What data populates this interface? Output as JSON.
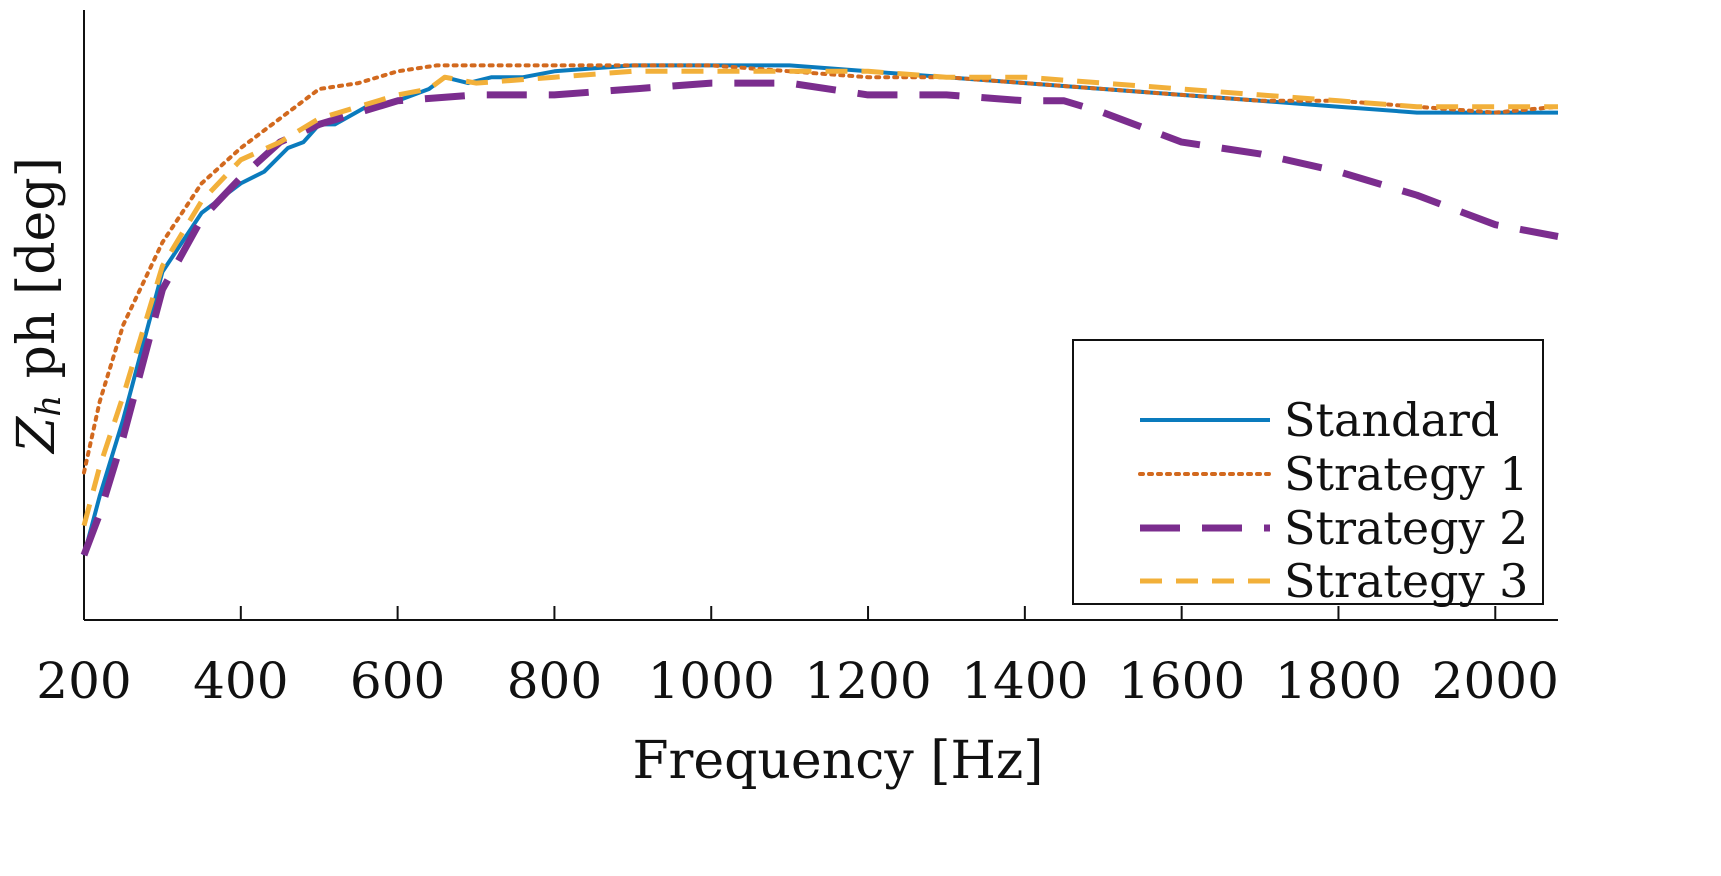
{
  "chart_data": {
    "type": "line",
    "title": "",
    "xlabel": "Frequency [Hz]",
    "ylabel_main": "Z",
    "ylabel_sub": "h",
    "ylabel_rest": " ph [deg]",
    "xlim": [
      200,
      2080
    ],
    "ylim": [
      0,
      100
    ],
    "x_ticks": [
      200,
      400,
      600,
      800,
      1000,
      1200,
      1400,
      1600,
      1800,
      2000
    ],
    "y_ticks_labeled": false,
    "grid": false,
    "legend_position": "bottom-right",
    "series": [
      {
        "name": "Standard",
        "color": "#0a7bbd",
        "dash": "solid",
        "points": [
          [
            200,
            11
          ],
          [
            220,
            21
          ],
          [
            250,
            34
          ],
          [
            300,
            59
          ],
          [
            350,
            69
          ],
          [
            400,
            74
          ],
          [
            430,
            76
          ],
          [
            460,
            80
          ],
          [
            480,
            81
          ],
          [
            500,
            84
          ],
          [
            520,
            84
          ],
          [
            560,
            87
          ],
          [
            600,
            88
          ],
          [
            640,
            90
          ],
          [
            660,
            92
          ],
          [
            690,
            91
          ],
          [
            720,
            92
          ],
          [
            760,
            92
          ],
          [
            800,
            93
          ],
          [
            900,
            94
          ],
          [
            1000,
            94
          ],
          [
            1100,
            94
          ],
          [
            1200,
            93
          ],
          [
            1300,
            92
          ],
          [
            1400,
            91
          ],
          [
            1500,
            90
          ],
          [
            1600,
            89
          ],
          [
            1700,
            88
          ],
          [
            1800,
            87
          ],
          [
            1900,
            86
          ],
          [
            2000,
            86
          ],
          [
            2080,
            86
          ]
        ]
      },
      {
        "name": "Strategy 1",
        "color": "#d2691e",
        "dash": "dotted",
        "points": [
          [
            200,
            25
          ],
          [
            220,
            37
          ],
          [
            250,
            50
          ],
          [
            300,
            64
          ],
          [
            350,
            74
          ],
          [
            400,
            80
          ],
          [
            450,
            85
          ],
          [
            500,
            90
          ],
          [
            550,
            91
          ],
          [
            600,
            93
          ],
          [
            650,
            94
          ],
          [
            700,
            94
          ],
          [
            800,
            94
          ],
          [
            900,
            94
          ],
          [
            1000,
            94
          ],
          [
            1100,
            93
          ],
          [
            1200,
            92
          ],
          [
            1300,
            92
          ],
          [
            1400,
            91
          ],
          [
            1500,
            90
          ],
          [
            1600,
            89
          ],
          [
            1700,
            88
          ],
          [
            1800,
            88
          ],
          [
            1900,
            87
          ],
          [
            2000,
            86
          ],
          [
            2080,
            87
          ]
        ]
      },
      {
        "name": "Strategy 2",
        "color": "#7b2d8e",
        "dash": "long-dash",
        "points": [
          [
            200,
            11
          ],
          [
            220,
            18
          ],
          [
            250,
            31
          ],
          [
            300,
            56
          ],
          [
            350,
            68
          ],
          [
            400,
            75
          ],
          [
            450,
            81
          ],
          [
            500,
            84
          ],
          [
            550,
            86
          ],
          [
            600,
            88
          ],
          [
            700,
            89
          ],
          [
            800,
            89
          ],
          [
            900,
            90
          ],
          [
            1000,
            91
          ],
          [
            1100,
            91
          ],
          [
            1200,
            89
          ],
          [
            1300,
            89
          ],
          [
            1400,
            88
          ],
          [
            1450,
            88
          ],
          [
            1500,
            86
          ],
          [
            1600,
            81
          ],
          [
            1700,
            79
          ],
          [
            1800,
            76
          ],
          [
            1900,
            72
          ],
          [
            2000,
            67
          ],
          [
            2080,
            65
          ]
        ]
      },
      {
        "name": "Strategy 3",
        "color": "#f2b03a",
        "dash": "dashed",
        "points": [
          [
            200,
            16
          ],
          [
            220,
            26
          ],
          [
            250,
            38
          ],
          [
            300,
            60
          ],
          [
            350,
            71
          ],
          [
            400,
            78
          ],
          [
            450,
            81
          ],
          [
            500,
            85
          ],
          [
            550,
            87
          ],
          [
            600,
            89
          ],
          [
            640,
            90
          ],
          [
            660,
            92
          ],
          [
            700,
            91
          ],
          [
            800,
            92
          ],
          [
            900,
            93
          ],
          [
            1000,
            93
          ],
          [
            1100,
            93
          ],
          [
            1200,
            93
          ],
          [
            1300,
            92
          ],
          [
            1400,
            92
          ],
          [
            1500,
            91
          ],
          [
            1600,
            90
          ],
          [
            1700,
            89
          ],
          [
            1800,
            88
          ],
          [
            1900,
            87
          ],
          [
            2000,
            87
          ],
          [
            2080,
            87
          ]
        ]
      }
    ]
  }
}
